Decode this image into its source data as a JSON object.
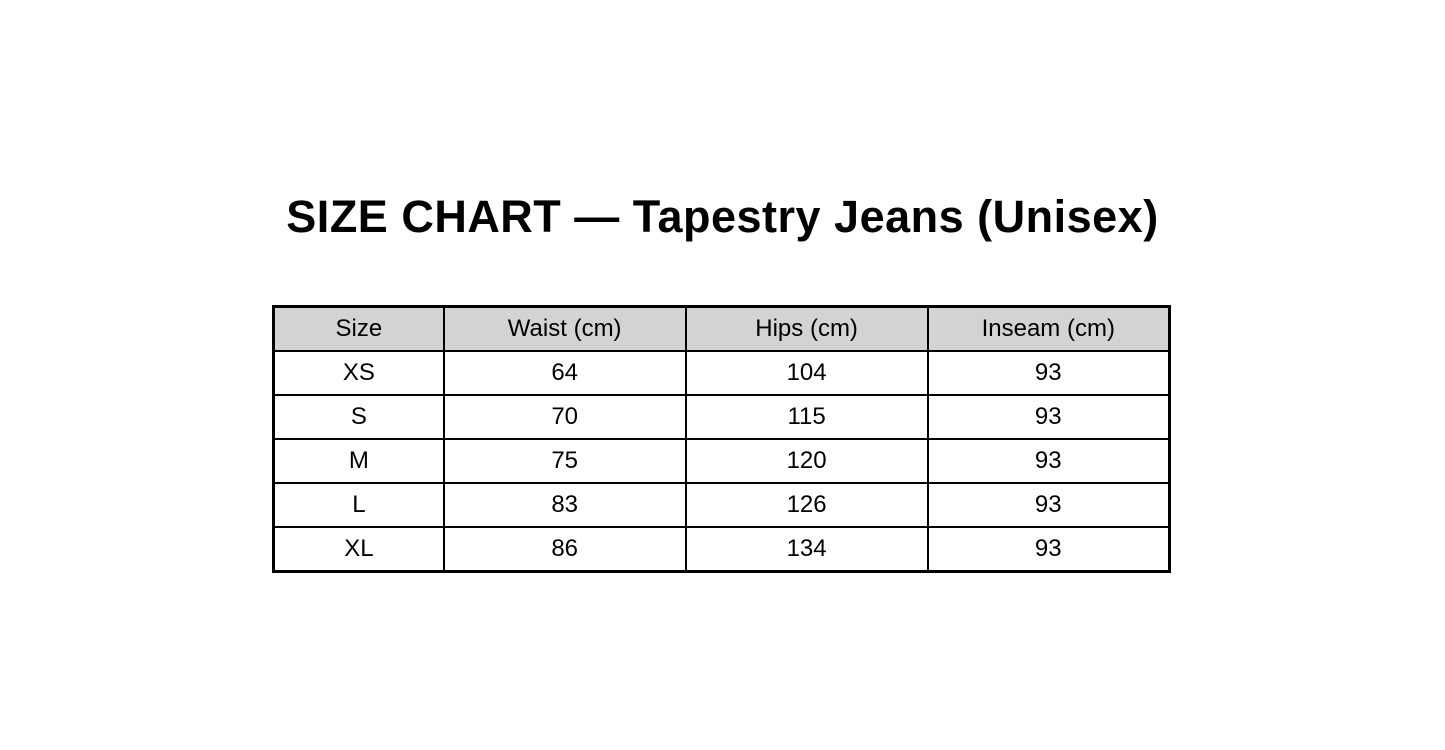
{
  "page": {
    "title": "SIZE CHART — Tapestry Jeans (Unisex)"
  },
  "table": {
    "headers": [
      "Size",
      "Waist (cm)",
      "Hips (cm)",
      "Inseam (cm)"
    ],
    "rows": [
      [
        "XS",
        "64",
        "104",
        "93"
      ],
      [
        "S",
        "70",
        "115",
        "93"
      ],
      [
        "M",
        "75",
        "120",
        "93"
      ],
      [
        "L",
        "83",
        "126",
        "93"
      ],
      [
        "XL",
        "86",
        "134",
        "93"
      ]
    ],
    "header_bg": "#d3d3d3",
    "border_color": "#000000",
    "text_color": "#000000"
  },
  "chart_data": {
    "type": "table",
    "title": "SIZE CHART — Tapestry Jeans (Unisex)",
    "columns": [
      "Size",
      "Waist (cm)",
      "Hips (cm)",
      "Inseam (cm)"
    ],
    "rows": [
      {
        "size": "XS",
        "waist_cm": 64,
        "hips_cm": 104,
        "inseam_cm": 93
      },
      {
        "size": "S",
        "waist_cm": 70,
        "hips_cm": 115,
        "inseam_cm": 93
      },
      {
        "size": "M",
        "waist_cm": 75,
        "hips_cm": 120,
        "inseam_cm": 93
      },
      {
        "size": "L",
        "waist_cm": 83,
        "hips_cm": 126,
        "inseam_cm": 93
      },
      {
        "size": "XL",
        "waist_cm": 86,
        "hips_cm": 134,
        "inseam_cm": 93
      }
    ],
    "layout": {
      "header_background": "#d3d3d3",
      "grid": "solid-black-borders",
      "title_position": "above-table-centered"
    }
  }
}
